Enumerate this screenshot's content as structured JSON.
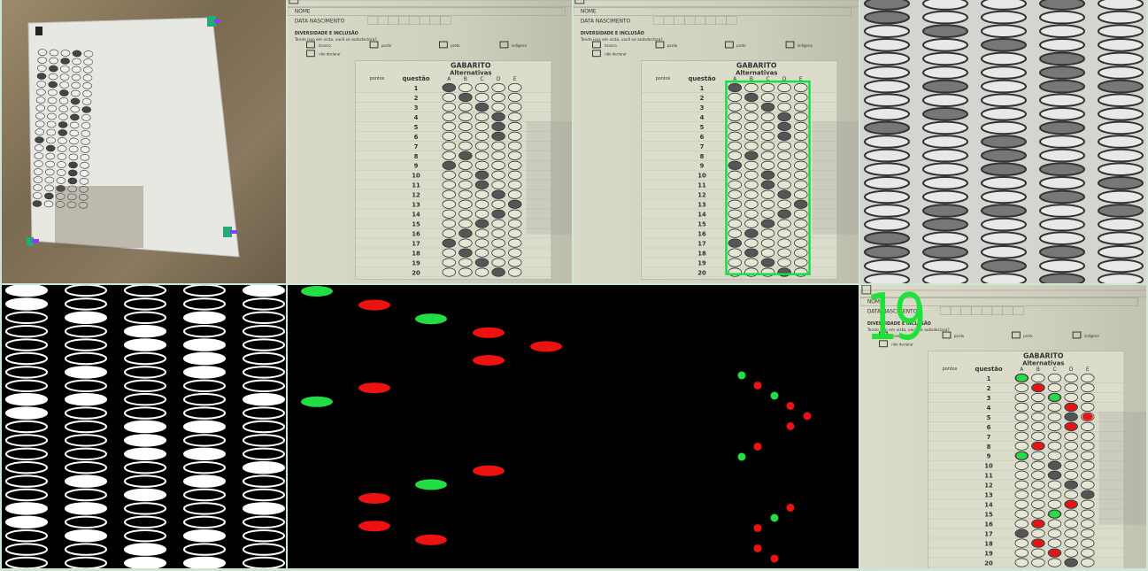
{
  "sheet": {
    "field_nome": "NOME",
    "field_data": "DATA NASCIMENTO",
    "diversity_title": "DIVERSIDADE E INCLUSÃO",
    "diversity_q": "Tendo isso em vista, você se autodeclara?",
    "opt_branco": "branco",
    "opt_pardo": "pardo",
    "opt_preto": "preto",
    "opt_indigena": "indígena",
    "opt_nao_declarar": "não declarar",
    "gabarito": "GABARITO",
    "alternativas": "Alternativas",
    "col_questao": "questão",
    "col_pontos": "pontos",
    "letters": [
      "A",
      "B",
      "C",
      "D",
      "E"
    ],
    "questions": [
      "1",
      "2",
      "3",
      "4",
      "5",
      "6",
      "7",
      "8",
      "9",
      "10",
      "11",
      "12",
      "13",
      "14",
      "15",
      "16",
      "17",
      "18",
      "19",
      "20"
    ]
  },
  "answers_marked": [
    0,
    1,
    2,
    3,
    3,
    3,
    -1,
    1,
    0,
    2,
    2,
    3,
    4,
    3,
    2,
    1,
    0,
    1,
    2,
    3
  ],
  "grading": {
    "score": "19",
    "correct_color": "#22dd44",
    "wrong_color": "#ee1111"
  },
  "overlay_dots": {
    "big": [
      {
        "q": 1,
        "col": 0,
        "ok": true
      },
      {
        "q": 2,
        "col": 1,
        "ok": false
      },
      {
        "q": 3,
        "col": 2,
        "ok": true
      },
      {
        "q": 4,
        "col": 3,
        "ok": false
      },
      {
        "q": 5,
        "col": 4,
        "ok": false
      },
      {
        "q": 6,
        "col": 3,
        "ok": false
      },
      {
        "q": 8,
        "col": 1,
        "ok": false
      },
      {
        "q": 9,
        "col": 0,
        "ok": true
      },
      {
        "q": 14,
        "col": 3,
        "ok": false
      },
      {
        "q": 15,
        "col": 2,
        "ok": true
      },
      {
        "q": 16,
        "col": 1,
        "ok": false
      },
      {
        "q": 18,
        "col": 1,
        "ok": false
      },
      {
        "q": 19,
        "col": 2,
        "ok": false
      }
    ]
  }
}
